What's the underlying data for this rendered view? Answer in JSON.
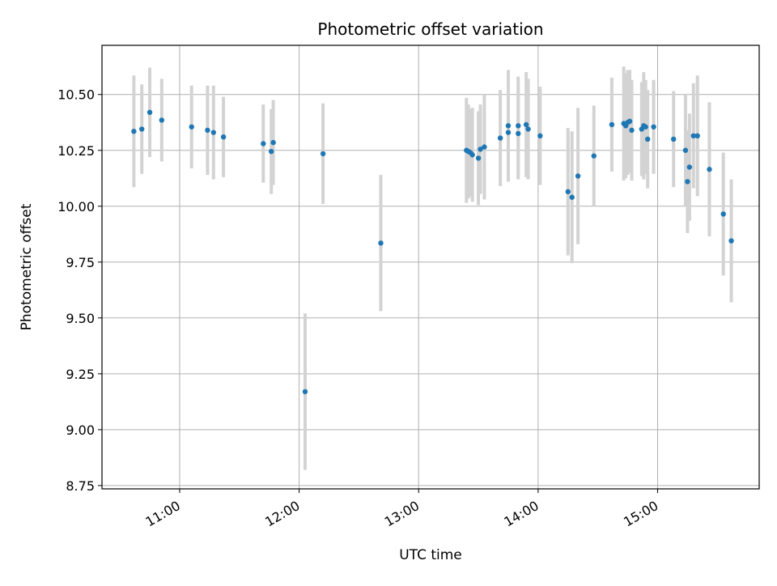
{
  "chart_data": {
    "type": "scatter",
    "title": "Photometric offset variation",
    "xlabel": "UTC time",
    "ylabel": "Photometric offset",
    "xlim": [
      "10:21",
      "15:51"
    ],
    "ylim": [
      8.735,
      10.72
    ],
    "x_ticks": [
      "11:00",
      "12:00",
      "13:00",
      "14:00",
      "15:00"
    ],
    "y_ticks": [
      "8.75",
      "9.00",
      "9.25",
      "9.50",
      "9.75",
      "10.00",
      "10.25",
      "10.50"
    ],
    "grid": true,
    "colors": {
      "point": "#1f77b4",
      "errorbar": "#d3d3d3",
      "grid": "#b0b0b0"
    },
    "points": [
      {
        "x": "10:37",
        "y": 10.335,
        "err": 0.25
      },
      {
        "x": "10:41",
        "y": 10.345,
        "err": 0.2
      },
      {
        "x": "10:45",
        "y": 10.42,
        "err": 0.2
      },
      {
        "x": "10:51",
        "y": 10.385,
        "err": 0.185
      },
      {
        "x": "11:06",
        "y": 10.355,
        "err": 0.185
      },
      {
        "x": "11:14",
        "y": 10.34,
        "err": 0.2
      },
      {
        "x": "11:17",
        "y": 10.33,
        "err": 0.21
      },
      {
        "x": "11:22",
        "y": 10.31,
        "err": 0.18
      },
      {
        "x": "11:42",
        "y": 10.28,
        "err": 0.175
      },
      {
        "x": "11:46",
        "y": 10.245,
        "err": 0.19
      },
      {
        "x": "11:47",
        "y": 10.285,
        "err": 0.19
      },
      {
        "x": "12:03",
        "y": 9.17,
        "err": 0.35
      },
      {
        "x": "12:12",
        "y": 10.235,
        "err": 0.225
      },
      {
        "x": "12:41",
        "y": 9.835,
        "err": 0.305
      },
      {
        "x": "13:24",
        "y": 10.25,
        "err": 0.235
      },
      {
        "x": "13:25",
        "y": 10.245,
        "err": 0.21
      },
      {
        "x": "13:26",
        "y": 10.24,
        "err": 0.195
      },
      {
        "x": "13:27",
        "y": 10.23,
        "err": 0.21
      },
      {
        "x": "13:30",
        "y": 10.215,
        "err": 0.21
      },
      {
        "x": "13:31",
        "y": 10.255,
        "err": 0.2
      },
      {
        "x": "13:33",
        "y": 10.265,
        "err": 0.235
      },
      {
        "x": "13:41",
        "y": 10.305,
        "err": 0.215
      },
      {
        "x": "13:45",
        "y": 10.36,
        "err": 0.25
      },
      {
        "x": "13:45",
        "y": 10.33,
        "err": 0.215
      },
      {
        "x": "13:50",
        "y": 10.36,
        "err": 0.22
      },
      {
        "x": "13:50",
        "y": 10.325,
        "err": 0.205
      },
      {
        "x": "13:54",
        "y": 10.365,
        "err": 0.235
      },
      {
        "x": "13:55",
        "y": 10.345,
        "err": 0.225
      },
      {
        "x": "14:01",
        "y": 10.315,
        "err": 0.22
      },
      {
        "x": "14:15",
        "y": 10.065,
        "err": 0.285
      },
      {
        "x": "14:17",
        "y": 10.04,
        "err": 0.295
      },
      {
        "x": "14:20",
        "y": 10.135,
        "err": 0.305
      },
      {
        "x": "14:28",
        "y": 10.225,
        "err": 0.225
      },
      {
        "x": "14:37",
        "y": 10.365,
        "err": 0.21
      },
      {
        "x": "14:43",
        "y": 10.37,
        "err": 0.255
      },
      {
        "x": "14:44",
        "y": 10.36,
        "err": 0.235
      },
      {
        "x": "14:45",
        "y": 10.375,
        "err": 0.235
      },
      {
        "x": "14:46",
        "y": 10.38,
        "err": 0.23
      },
      {
        "x": "14:47",
        "y": 10.34,
        "err": 0.225
      },
      {
        "x": "14:52",
        "y": 10.345,
        "err": 0.21
      },
      {
        "x": "14:53",
        "y": 10.36,
        "err": 0.24
      },
      {
        "x": "14:54",
        "y": 10.355,
        "err": 0.21
      },
      {
        "x": "14:55",
        "y": 10.3,
        "err": 0.22
      },
      {
        "x": "14:58",
        "y": 10.355,
        "err": 0.21
      },
      {
        "x": "15:08",
        "y": 10.3,
        "err": 0.215
      },
      {
        "x": "15:14",
        "y": 10.25,
        "err": 0.25
      },
      {
        "x": "15:15",
        "y": 10.11,
        "err": 0.23
      },
      {
        "x": "15:16",
        "y": 10.175,
        "err": 0.24
      },
      {
        "x": "15:18",
        "y": 10.315,
        "err": 0.235
      },
      {
        "x": "15:20",
        "y": 10.315,
        "err": 0.27
      },
      {
        "x": "15:26",
        "y": 10.165,
        "err": 0.3
      },
      {
        "x": "15:33",
        "y": 9.965,
        "err": 0.275
      },
      {
        "x": "15:37",
        "y": 9.845,
        "err": 0.275
      }
    ]
  }
}
